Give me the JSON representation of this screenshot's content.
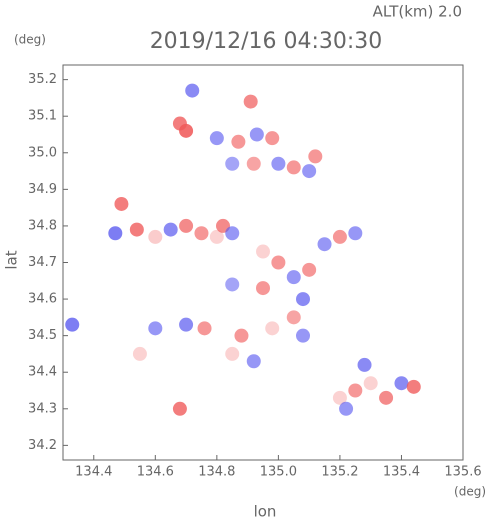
{
  "chart_data": {
    "type": "scatter",
    "title": "2019/12/16 04:30:30",
    "subtitle": "ALT(km) 2.0",
    "x_label": "lon",
    "y_label": "lat",
    "x_unit": "(deg)",
    "y_unit": "(deg)",
    "xlim": [
      134.3,
      135.6
    ],
    "ylim": [
      34.16,
      35.24
    ],
    "xticks": [
      134.4,
      134.6,
      134.8,
      {
        "value": 135,
        "label": "135.0"
      },
      135.2,
      135.4,
      135.6
    ],
    "yticks": [
      34.2,
      34.3,
      34.4,
      34.5,
      34.6,
      34.7,
      34.8,
      34.9,
      {
        "value": 35,
        "label": "35.0"
      },
      35.1,
      35.2
    ],
    "colors": [
      "#5a5af0",
      "#f05a5a"
    ],
    "x": [
      134.33,
      134.47,
      134.49,
      134.54,
      134.6,
      134.65,
      134.7,
      134.75,
      134.8,
      134.82,
      134.85,
      134.7,
      134.68,
      134.72,
      134.8,
      134.87,
      134.93,
      134.91,
      134.98,
      134.85,
      134.92,
      135.0,
      135.05,
      135.1,
      135.12,
      134.95,
      135.0,
      135.05,
      135.08,
      135.1,
      134.95,
      134.85,
      135.15,
      135.2,
      135.25,
      134.55,
      134.6,
      134.7,
      134.76,
      134.85,
      134.88,
      134.92,
      134.98,
      135.05,
      135.08,
      134.68,
      135.2,
      135.25,
      135.3,
      135.28,
      135.35,
      135.4,
      135.44,
      135.22
    ],
    "y": [
      34.53,
      34.78,
      34.86,
      34.79,
      34.77,
      34.79,
      34.8,
      34.78,
      34.77,
      34.8,
      34.78,
      35.06,
      35.08,
      35.17,
      35.04,
      35.03,
      35.05,
      35.14,
      35.04,
      34.97,
      34.97,
      34.97,
      34.96,
      34.95,
      34.99,
      34.73,
      34.7,
      34.66,
      34.6,
      34.68,
      34.63,
      34.64,
      34.75,
      34.77,
      34.78,
      34.45,
      34.52,
      34.53,
      34.52,
      34.45,
      34.5,
      34.43,
      34.52,
      34.55,
      34.5,
      34.3,
      34.33,
      34.35,
      34.37,
      34.42,
      34.33,
      34.37,
      34.36,
      34.3
    ],
    "values": [
      -0.8,
      -0.8,
      0.8,
      0.8,
      0.2,
      -0.7,
      0.7,
      0.6,
      0.15,
      0.7,
      -0.6,
      0.9,
      0.8,
      -0.7,
      -0.6,
      0.6,
      -0.6,
      0.7,
      0.6,
      -0.5,
      0.5,
      -0.6,
      0.6,
      -0.6,
      0.6,
      0.15,
      0.6,
      -0.6,
      -0.7,
      0.6,
      0.6,
      -0.5,
      -0.6,
      0.6,
      -0.6,
      0.15,
      -0.6,
      -0.7,
      0.6,
      0.15,
      0.6,
      -0.6,
      0.15,
      0.5,
      -0.6,
      0.8,
      0.15,
      0.6,
      0.15,
      -0.7,
      0.7,
      -0.7,
      0.8,
      -0.6
    ]
  }
}
